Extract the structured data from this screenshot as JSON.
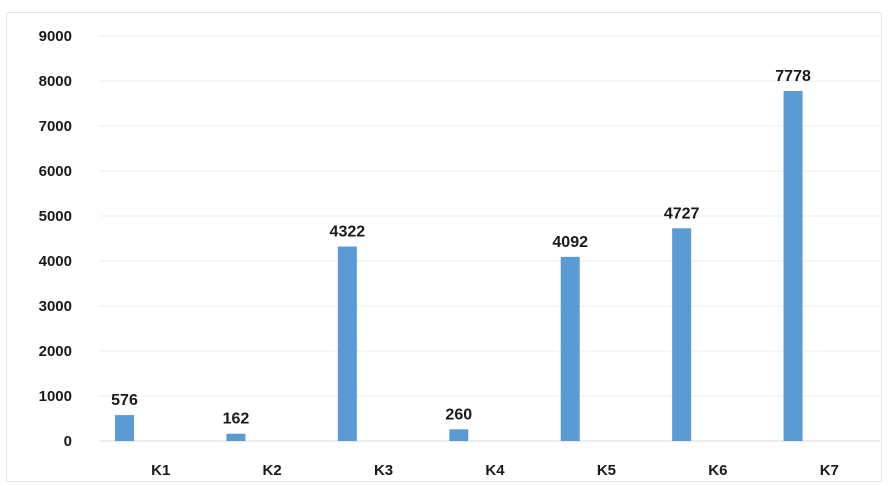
{
  "chart_data": {
    "type": "bar",
    "categories": [
      "K1",
      "K2",
      "K3",
      "K4",
      "K5",
      "K6",
      "K7"
    ],
    "values": [
      576,
      162,
      4322,
      260,
      4092,
      4727,
      7778
    ],
    "data_labels": [
      "576",
      "162",
      "4322",
      "260",
      "4092",
      "4727",
      "7778"
    ],
    "title": "",
    "xlabel": "",
    "ylabel": "",
    "ylim": [
      0,
      9000
    ],
    "yticks": [
      0,
      1000,
      2000,
      3000,
      4000,
      5000,
      6000,
      7000,
      8000,
      9000
    ],
    "ytick_labels": [
      "0",
      "1000",
      "2000",
      "3000",
      "4000",
      "5000",
      "6000",
      "7000",
      "8000",
      "9000"
    ],
    "grid": true,
    "legend": "none",
    "bar_color": "#5b9bd5"
  }
}
